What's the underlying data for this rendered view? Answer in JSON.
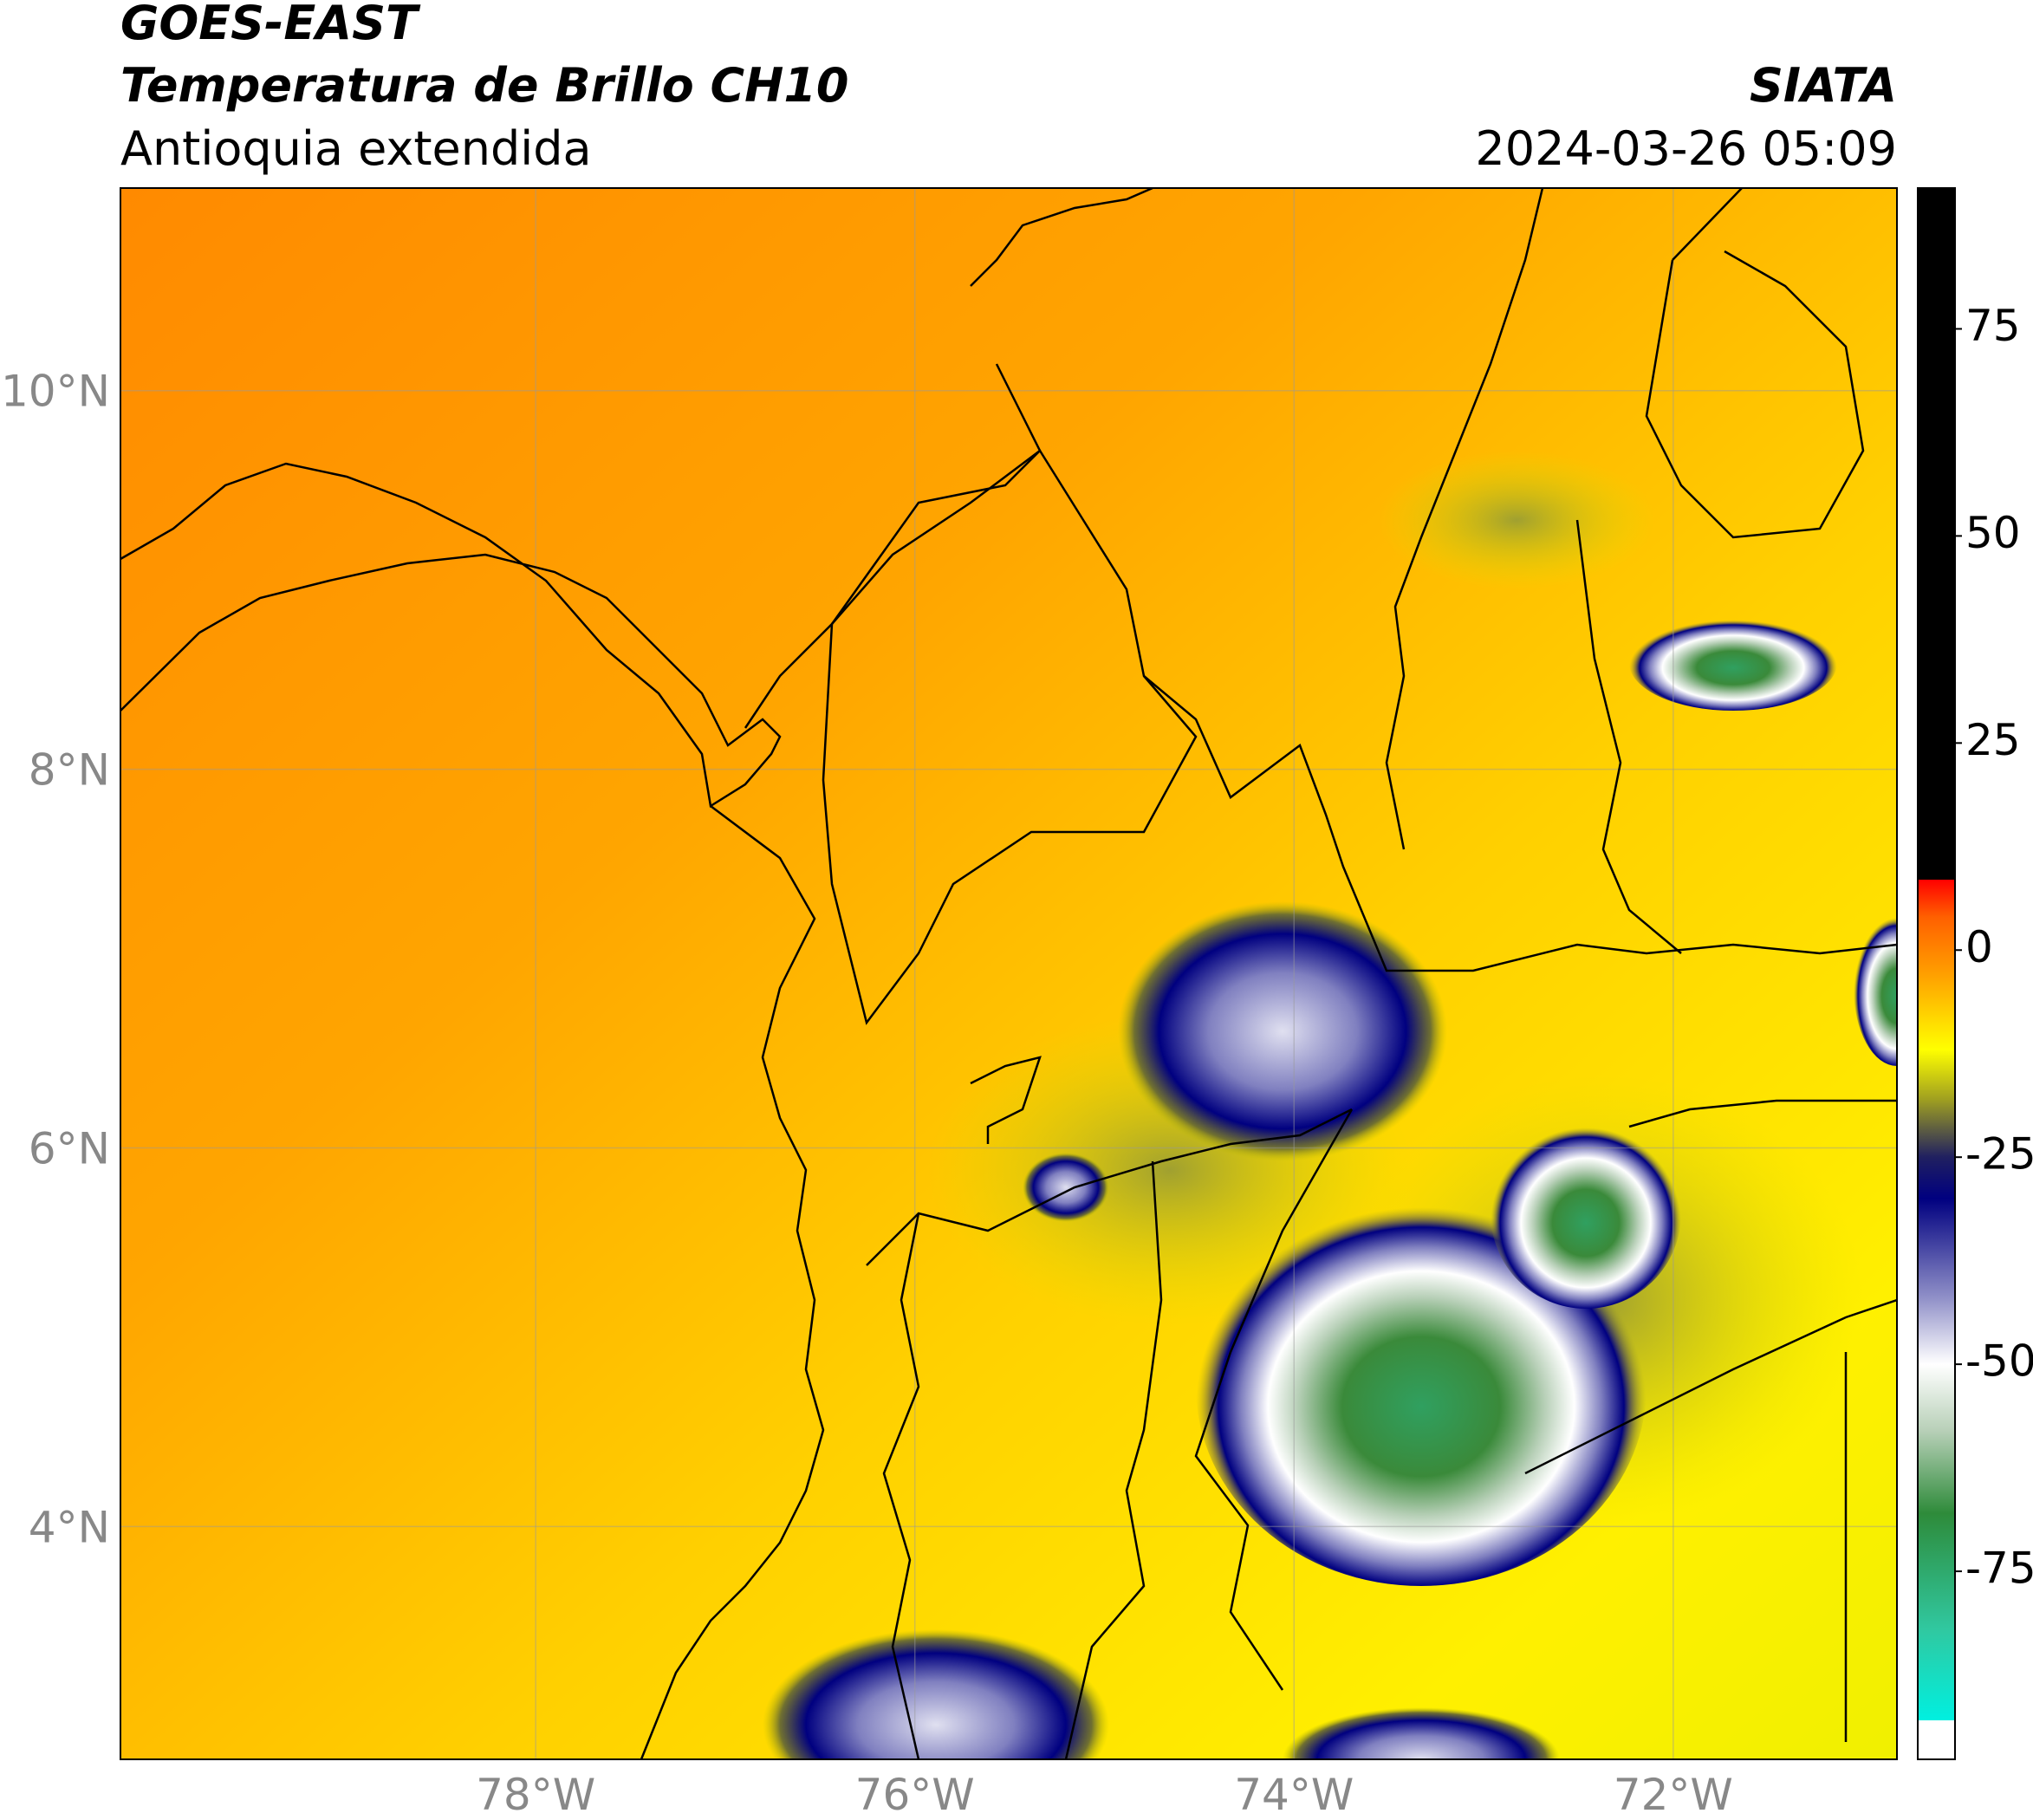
{
  "header": {
    "title": "GOES-EAST",
    "subtitle": "Temperatura de Brillo CH10",
    "region": "Antioquia extendida",
    "source": "SIATA",
    "timestamp": "2024-03-26 05:09"
  },
  "map": {
    "xlim": [
      -80.19,
      -70.82
    ],
    "ylim": [
      2.77,
      11.07
    ],
    "xticks": [
      {
        "value": -78,
        "label": "78°W"
      },
      {
        "value": -76,
        "label": "76°W"
      },
      {
        "value": -74,
        "label": "74°W"
      },
      {
        "value": -72,
        "label": "72°W"
      }
    ],
    "yticks": [
      {
        "value": 4,
        "label": "4°N"
      },
      {
        "value": 6,
        "label": "6°N"
      },
      {
        "value": 8,
        "label": "8°N"
      },
      {
        "value": 10,
        "label": "10°N"
      }
    ],
    "grid": true
  },
  "colorbar": {
    "lim": [
      -97.7,
      92
    ],
    "ticks": [
      75,
      50,
      25,
      0,
      -25,
      -50,
      -75
    ],
    "colorscale": [
      {
        "value": -97.7,
        "color": "#ffffff"
      },
      {
        "value": -93,
        "color": "#ffffff"
      },
      {
        "value": -93,
        "color": "#00f0e0"
      },
      {
        "value": -82,
        "color": "#30c8a0"
      },
      {
        "value": -68,
        "color": "#2e8b3a"
      },
      {
        "value": -58,
        "color": "#b8d0b8"
      },
      {
        "value": -50,
        "color": "#ffffff"
      },
      {
        "value": -42,
        "color": "#9090c8"
      },
      {
        "value": -30,
        "color": "#000080"
      },
      {
        "value": -25,
        "color": "#202060"
      },
      {
        "value": -18,
        "color": "#a0a020"
      },
      {
        "value": -12,
        "color": "#ffff00"
      },
      {
        "value": -3,
        "color": "#ffa000"
      },
      {
        "value": 4,
        "color": "#ff6000"
      },
      {
        "value": 8.5,
        "color": "#ff0000"
      },
      {
        "value": 8.5,
        "color": "#000000"
      },
      {
        "value": 92,
        "color": "#000000"
      }
    ]
  }
}
